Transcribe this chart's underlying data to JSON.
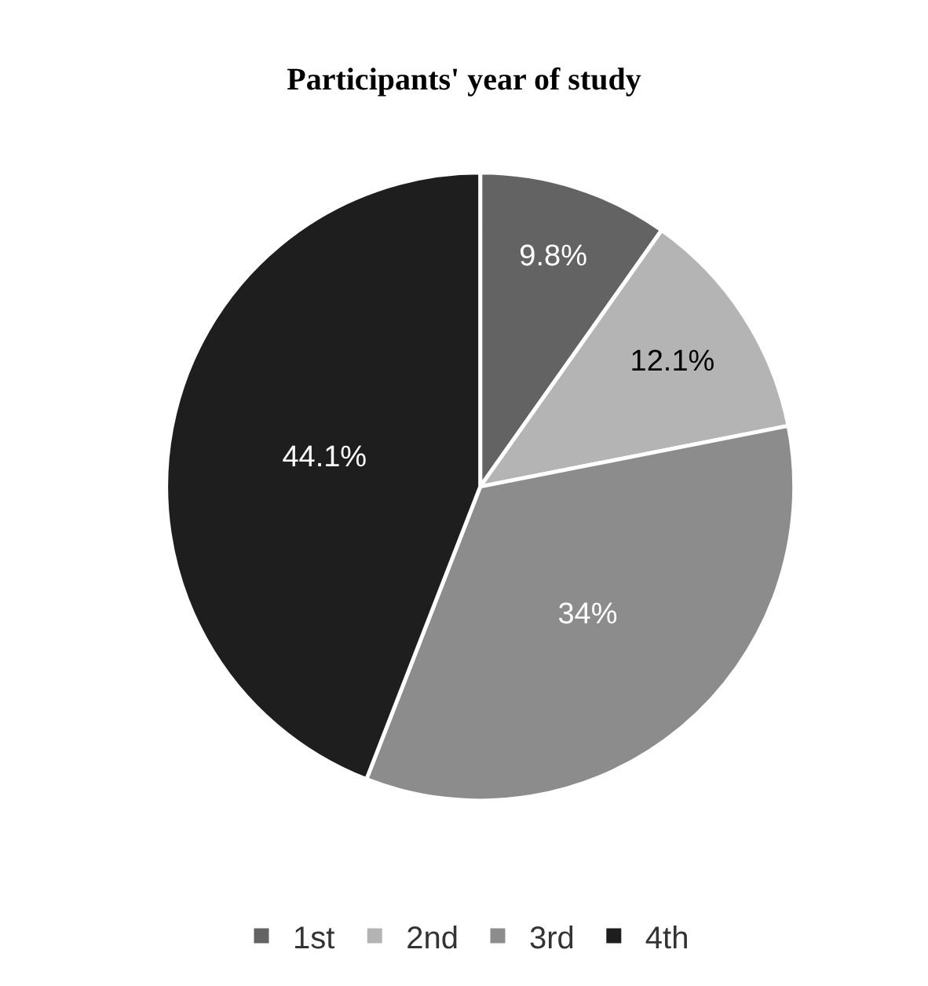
{
  "chart_data": {
    "type": "pie",
    "title": "Participants' year of study",
    "categories": [
      "1st",
      "2nd",
      "3rd",
      "4th"
    ],
    "values": [
      9.8,
      12.1,
      34,
      44.1
    ],
    "colors": [
      "#636363",
      "#b4b4b4",
      "#8c8c8c",
      "#1e1e1e"
    ],
    "value_labels": [
      "9.8%",
      "12.1%",
      "34%",
      "44.1%"
    ],
    "legend": "bottom"
  }
}
